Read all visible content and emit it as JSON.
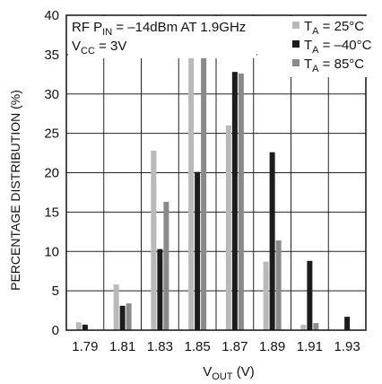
{
  "chart_data": {
    "type": "bar",
    "title": "",
    "annotation": {
      "line1": {
        "pre": "RF P",
        "sub": "IN",
        "post": " = –14dBm AT 1.9GHz"
      },
      "line2": {
        "pre": "V",
        "sub": "CC",
        "post": " = 3V"
      }
    },
    "xlabel": {
      "pre": "V",
      "sub": "OUT",
      "post": " (V)"
    },
    "ylabel": "PERCENTAGE DISTRIBUTION (%)",
    "ylim": [
      0,
      40
    ],
    "yticks": [
      "0",
      "5",
      "10",
      "15",
      "20",
      "25",
      "30",
      "35",
      "40"
    ],
    "categories": [
      "1.79",
      "1.81",
      "1.83",
      "1.85",
      "1.87",
      "1.89",
      "1.91",
      "1.93"
    ],
    "grid": true,
    "legend_position": "top-right",
    "series": [
      {
        "legend": {
          "pre": "T",
          "sub": "A",
          "post": " = 25°C"
        },
        "color": "#b9b9b9",
        "values": [
          1.0,
          5.8,
          22.8,
          35.3,
          26.0,
          8.7,
          0.7,
          0
        ]
      },
      {
        "legend": {
          "pre": "T",
          "sub": "A",
          "post": " = –40°C"
        },
        "color": "#1c1c1c",
        "values": [
          0.7,
          3.1,
          10.3,
          20.1,
          32.8,
          22.6,
          8.8,
          1.7
        ]
      },
      {
        "legend": {
          "pre": "T",
          "sub": "A",
          "post": " = 85°C"
        },
        "color": "#8a8a8a",
        "values": [
          0,
          3.4,
          16.3,
          35.6,
          32.6,
          11.4,
          0.9,
          0
        ]
      }
    ]
  }
}
